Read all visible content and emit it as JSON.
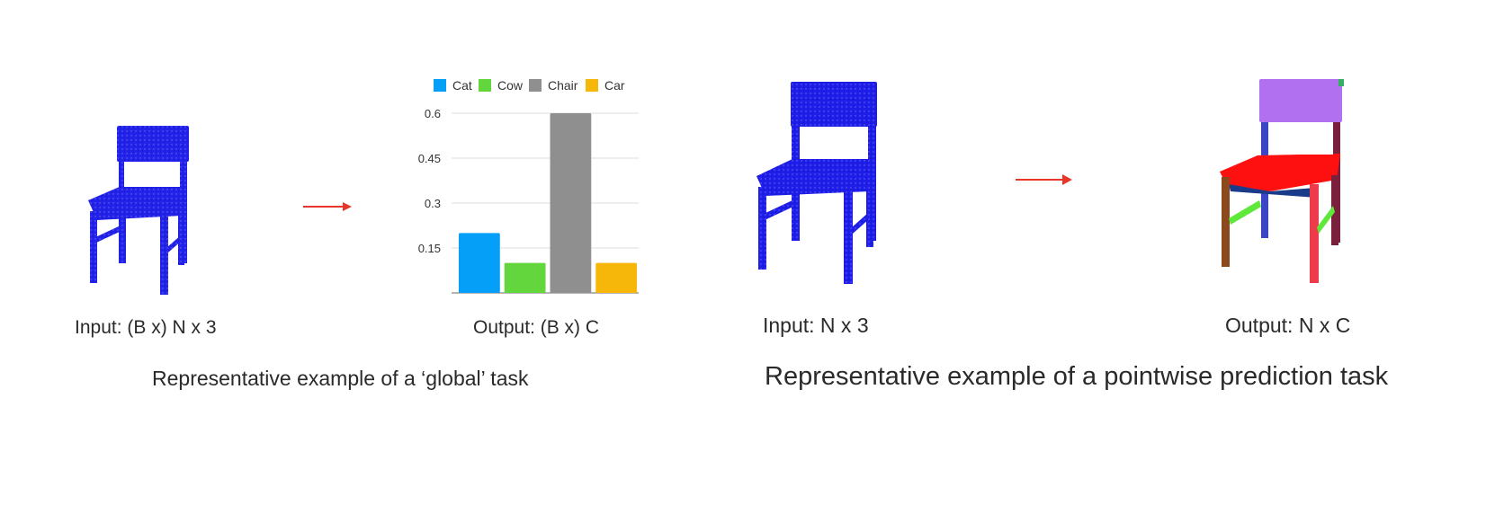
{
  "global_task": {
    "input_label": "Input: (B x) N x 3",
    "output_label": "Output: (B x) C",
    "title": "Representative example of a ‘global’ task"
  },
  "pointwise_task": {
    "input_label": "Input: N x 3",
    "output_label": "Output: N x C",
    "title": "Representative example of a pointwise prediction task"
  },
  "colors": {
    "point_cloud": "#1a1ae6",
    "arrow": "#e8372a",
    "seat_segment": "#ff1010",
    "back_segment": "#b070f0",
    "leg_front_left": "#8b4a1e",
    "leg_front_right": "#ee3b4b",
    "leg_back_right": "#7a1f3c",
    "rung_segment": "#5ee83a"
  },
  "chart_data": {
    "type": "bar",
    "categories": [
      "Cat",
      "Cow",
      "Chair",
      "Car"
    ],
    "values": [
      0.2,
      0.1,
      0.6,
      0.1
    ],
    "colors": [
      "#069ff7",
      "#62d63c",
      "#8f8f8f",
      "#f6b70a"
    ],
    "ylim": [
      0,
      0.6
    ],
    "yticks": [
      0.15,
      0.3,
      0.45,
      0.6
    ],
    "ytick_labels": [
      "0.15",
      "0.3",
      "0.45",
      "0.6"
    ],
    "legend": [
      "Cat",
      "Cow",
      "Chair",
      "Car"
    ],
    "legend_position": "top",
    "grid": true,
    "title": "",
    "xlabel": "",
    "ylabel": ""
  }
}
